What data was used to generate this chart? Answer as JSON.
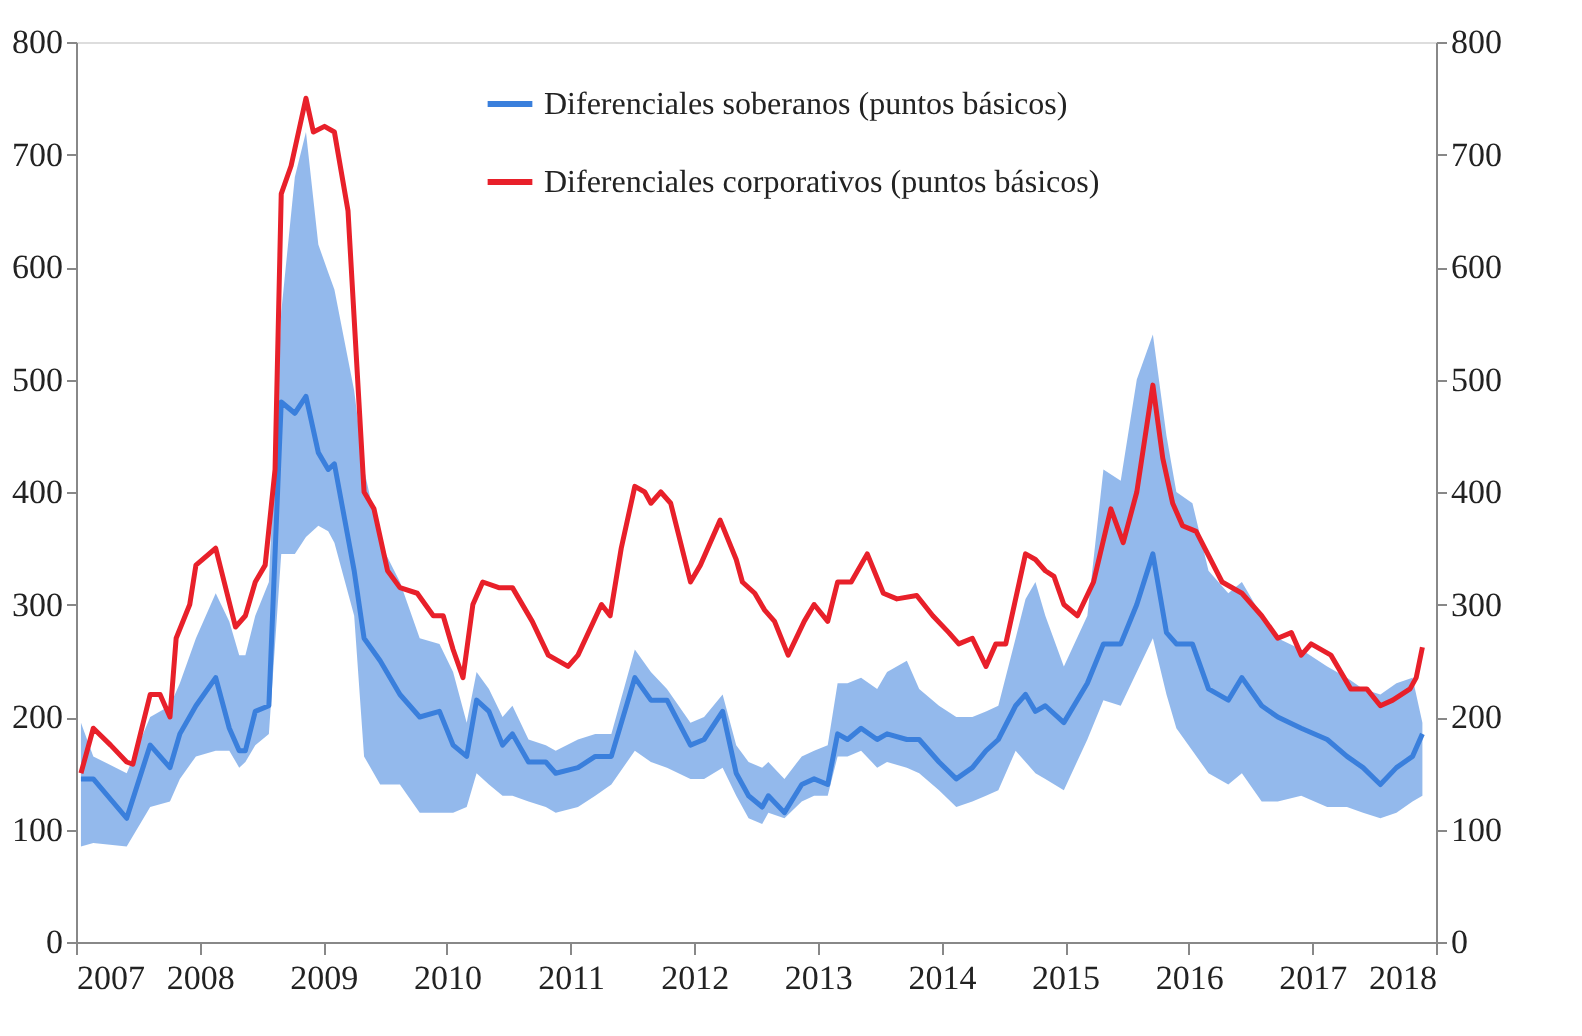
{
  "chart_data": {
    "type": "line",
    "xlim": [
      2007,
      2018
    ],
    "xticks": [
      2007,
      2008,
      2009,
      2010,
      2011,
      2012,
      2013,
      2014,
      2015,
      2016,
      2017,
      2018
    ],
    "ylim": [
      0,
      800
    ],
    "yticks": [
      0,
      100,
      200,
      300,
      400,
      500,
      600,
      700,
      800
    ],
    "y2lim": [
      0,
      800
    ],
    "y2ticks": [
      0,
      100,
      200,
      300,
      400,
      500,
      600,
      700,
      800
    ],
    "grid": false,
    "legend": "top",
    "line_style": "solid",
    "marker": "none",
    "series": [
      {
        "name": "Diferenciales soberanos (puntos básicos)",
        "color": "#3a7fdc",
        "x": [
          2007.04,
          2007.14,
          2007.41,
          2007.6,
          2007.76,
          2007.84,
          2007.97,
          2008.13,
          2008.24,
          2008.32,
          2008.37,
          2008.45,
          2008.56,
          2008.66,
          2008.77,
          2008.86,
          2008.96,
          2009.04,
          2009.09,
          2009.25,
          2009.33,
          2009.46,
          2009.62,
          2009.78,
          2009.94,
          2010.05,
          2010.16,
          2010.24,
          2010.34,
          2010.45,
          2010.53,
          2010.66,
          2010.8,
          2010.88,
          2011.06,
          2011.2,
          2011.33,
          2011.52,
          2011.65,
          2011.78,
          2011.97,
          2012.08,
          2012.23,
          2012.34,
          2012.44,
          2012.55,
          2012.6,
          2012.73,
          2012.87,
          2012.97,
          2013.08,
          2013.16,
          2013.24,
          2013.35,
          2013.48,
          2013.56,
          2013.72,
          2013.82,
          2013.98,
          2014.12,
          2014.25,
          2014.36,
          2014.46,
          2014.6,
          2014.68,
          2014.76,
          2014.84,
          2014.99,
          2015.18,
          2015.31,
          2015.45,
          2015.58,
          2015.71,
          2015.82,
          2015.9,
          2016.03,
          2016.16,
          2016.32,
          2016.43,
          2016.59,
          2016.72,
          2016.91,
          2017.12,
          2017.28,
          2017.41,
          2017.55,
          2017.68,
          2017.81,
          2017.89
        ],
        "values": [
          145,
          145,
          110,
          175,
          155,
          185,
          210,
          235,
          190,
          170,
          170,
          205,
          210,
          480,
          470,
          485,
          435,
          420,
          425,
          330,
          270,
          250,
          220,
          200,
          205,
          175,
          165,
          215,
          205,
          175,
          185,
          160,
          160,
          150,
          155,
          165,
          165,
          235,
          215,
          215,
          175,
          180,
          205,
          150,
          130,
          120,
          130,
          115,
          140,
          145,
          140,
          185,
          180,
          190,
          180,
          185,
          180,
          180,
          160,
          145,
          155,
          170,
          180,
          210,
          220,
          205,
          210,
          195,
          230,
          265,
          265,
          300,
          345,
          275,
          265,
          265,
          225,
          215,
          235,
          210,
          200,
          190,
          180,
          165,
          155,
          140,
          155,
          165,
          185
        ],
        "lower": [
          85,
          88,
          85,
          120,
          125,
          145,
          165,
          170,
          170,
          155,
          160,
          175,
          185,
          345,
          345,
          360,
          370,
          365,
          355,
          290,
          165,
          140,
          140,
          115,
          115,
          115,
          120,
          150,
          140,
          130,
          130,
          125,
          120,
          115,
          120,
          130,
          140,
          170,
          160,
          155,
          145,
          145,
          155,
          130,
          110,
          105,
          115,
          110,
          125,
          130,
          130,
          165,
          165,
          170,
          155,
          160,
          155,
          150,
          135,
          120,
          125,
          130,
          135,
          170,
          160,
          150,
          145,
          135,
          180,
          215,
          210,
          240,
          270,
          220,
          190,
          170,
          150,
          140,
          150,
          125,
          125,
          130,
          120,
          120,
          115,
          110,
          115,
          125,
          130
        ],
        "upper": [
          195,
          165,
          150,
          200,
          210,
          230,
          270,
          310,
          285,
          255,
          255,
          290,
          320,
          560,
          680,
          720,
          620,
          595,
          580,
          490,
          420,
          355,
          320,
          270,
          265,
          240,
          195,
          240,
          225,
          200,
          210,
          180,
          175,
          170,
          180,
          185,
          185,
          260,
          240,
          225,
          195,
          200,
          220,
          175,
          160,
          155,
          160,
          145,
          165,
          170,
          175,
          230,
          230,
          235,
          225,
          240,
          250,
          225,
          210,
          200,
          200,
          205,
          210,
          270,
          305,
          320,
          290,
          245,
          290,
          420,
          410,
          500,
          540,
          450,
          400,
          390,
          330,
          310,
          320,
          290,
          270,
          260,
          245,
          235,
          225,
          220,
          230,
          235,
          195
        ]
      },
      {
        "name": "Diferenciales corporativos (puntos básicos)",
        "color": "#e8202a",
        "axis": "y2",
        "x": [
          2007.04,
          2007.14,
          2007.28,
          2007.41,
          2007.46,
          2007.6,
          2007.68,
          2007.76,
          2007.81,
          2007.92,
          2007.97,
          2008.13,
          2008.29,
          2008.37,
          2008.45,
          2008.53,
          2008.61,
          2008.66,
          2008.74,
          2008.86,
          2008.92,
          2009.01,
          2009.09,
          2009.2,
          2009.33,
          2009.41,
          2009.52,
          2009.62,
          2009.76,
          2009.89,
          2009.97,
          2010.05,
          2010.13,
          2010.21,
          2010.29,
          2010.42,
          2010.53,
          2010.69,
          2010.82,
          2010.98,
          2011.06,
          2011.25,
          2011.32,
          2011.41,
          2011.52,
          2011.6,
          2011.65,
          2011.73,
          2011.81,
          2011.97,
          2012.05,
          2012.21,
          2012.34,
          2012.39,
          2012.49,
          2012.57,
          2012.65,
          2012.76,
          2012.89,
          2012.97,
          2013.08,
          2013.16,
          2013.27,
          2013.4,
          2013.53,
          2013.64,
          2013.8,
          2013.93,
          2014.06,
          2014.14,
          2014.25,
          2014.36,
          2014.44,
          2014.52,
          2014.68,
          2014.76,
          2014.84,
          2014.91,
          2014.99,
          2015.1,
          2015.23,
          2015.37,
          2015.47,
          2015.58,
          2015.71,
          2015.79,
          2015.87,
          2015.95,
          2016.06,
          2016.27,
          2016.43,
          2016.59,
          2016.72,
          2016.83,
          2016.91,
          2016.99,
          2017.15,
          2017.31,
          2017.44,
          2017.55,
          2017.65,
          2017.79,
          2017.84,
          2017.89
        ],
        "values": [
          150,
          190,
          175,
          160,
          158,
          220,
          220,
          200,
          270,
          300,
          335,
          350,
          280,
          290,
          320,
          335,
          420,
          665,
          690,
          750,
          720,
          725,
          720,
          650,
          400,
          385,
          330,
          315,
          310,
          290,
          290,
          260,
          235,
          300,
          320,
          315,
          315,
          285,
          255,
          245,
          255,
          300,
          290,
          350,
          405,
          400,
          390,
          400,
          390,
          320,
          335,
          375,
          340,
          320,
          310,
          295,
          285,
          255,
          285,
          300,
          285,
          320,
          320,
          345,
          310,
          305,
          308,
          290,
          275,
          265,
          270,
          245,
          265,
          265,
          345,
          340,
          330,
          325,
          300,
          290,
          320,
          385,
          355,
          400,
          495,
          430,
          390,
          370,
          365,
          320,
          310,
          290,
          270,
          275,
          255,
          265,
          255,
          225,
          225,
          210,
          215,
          225,
          235,
          262
        ]
      }
    ]
  }
}
